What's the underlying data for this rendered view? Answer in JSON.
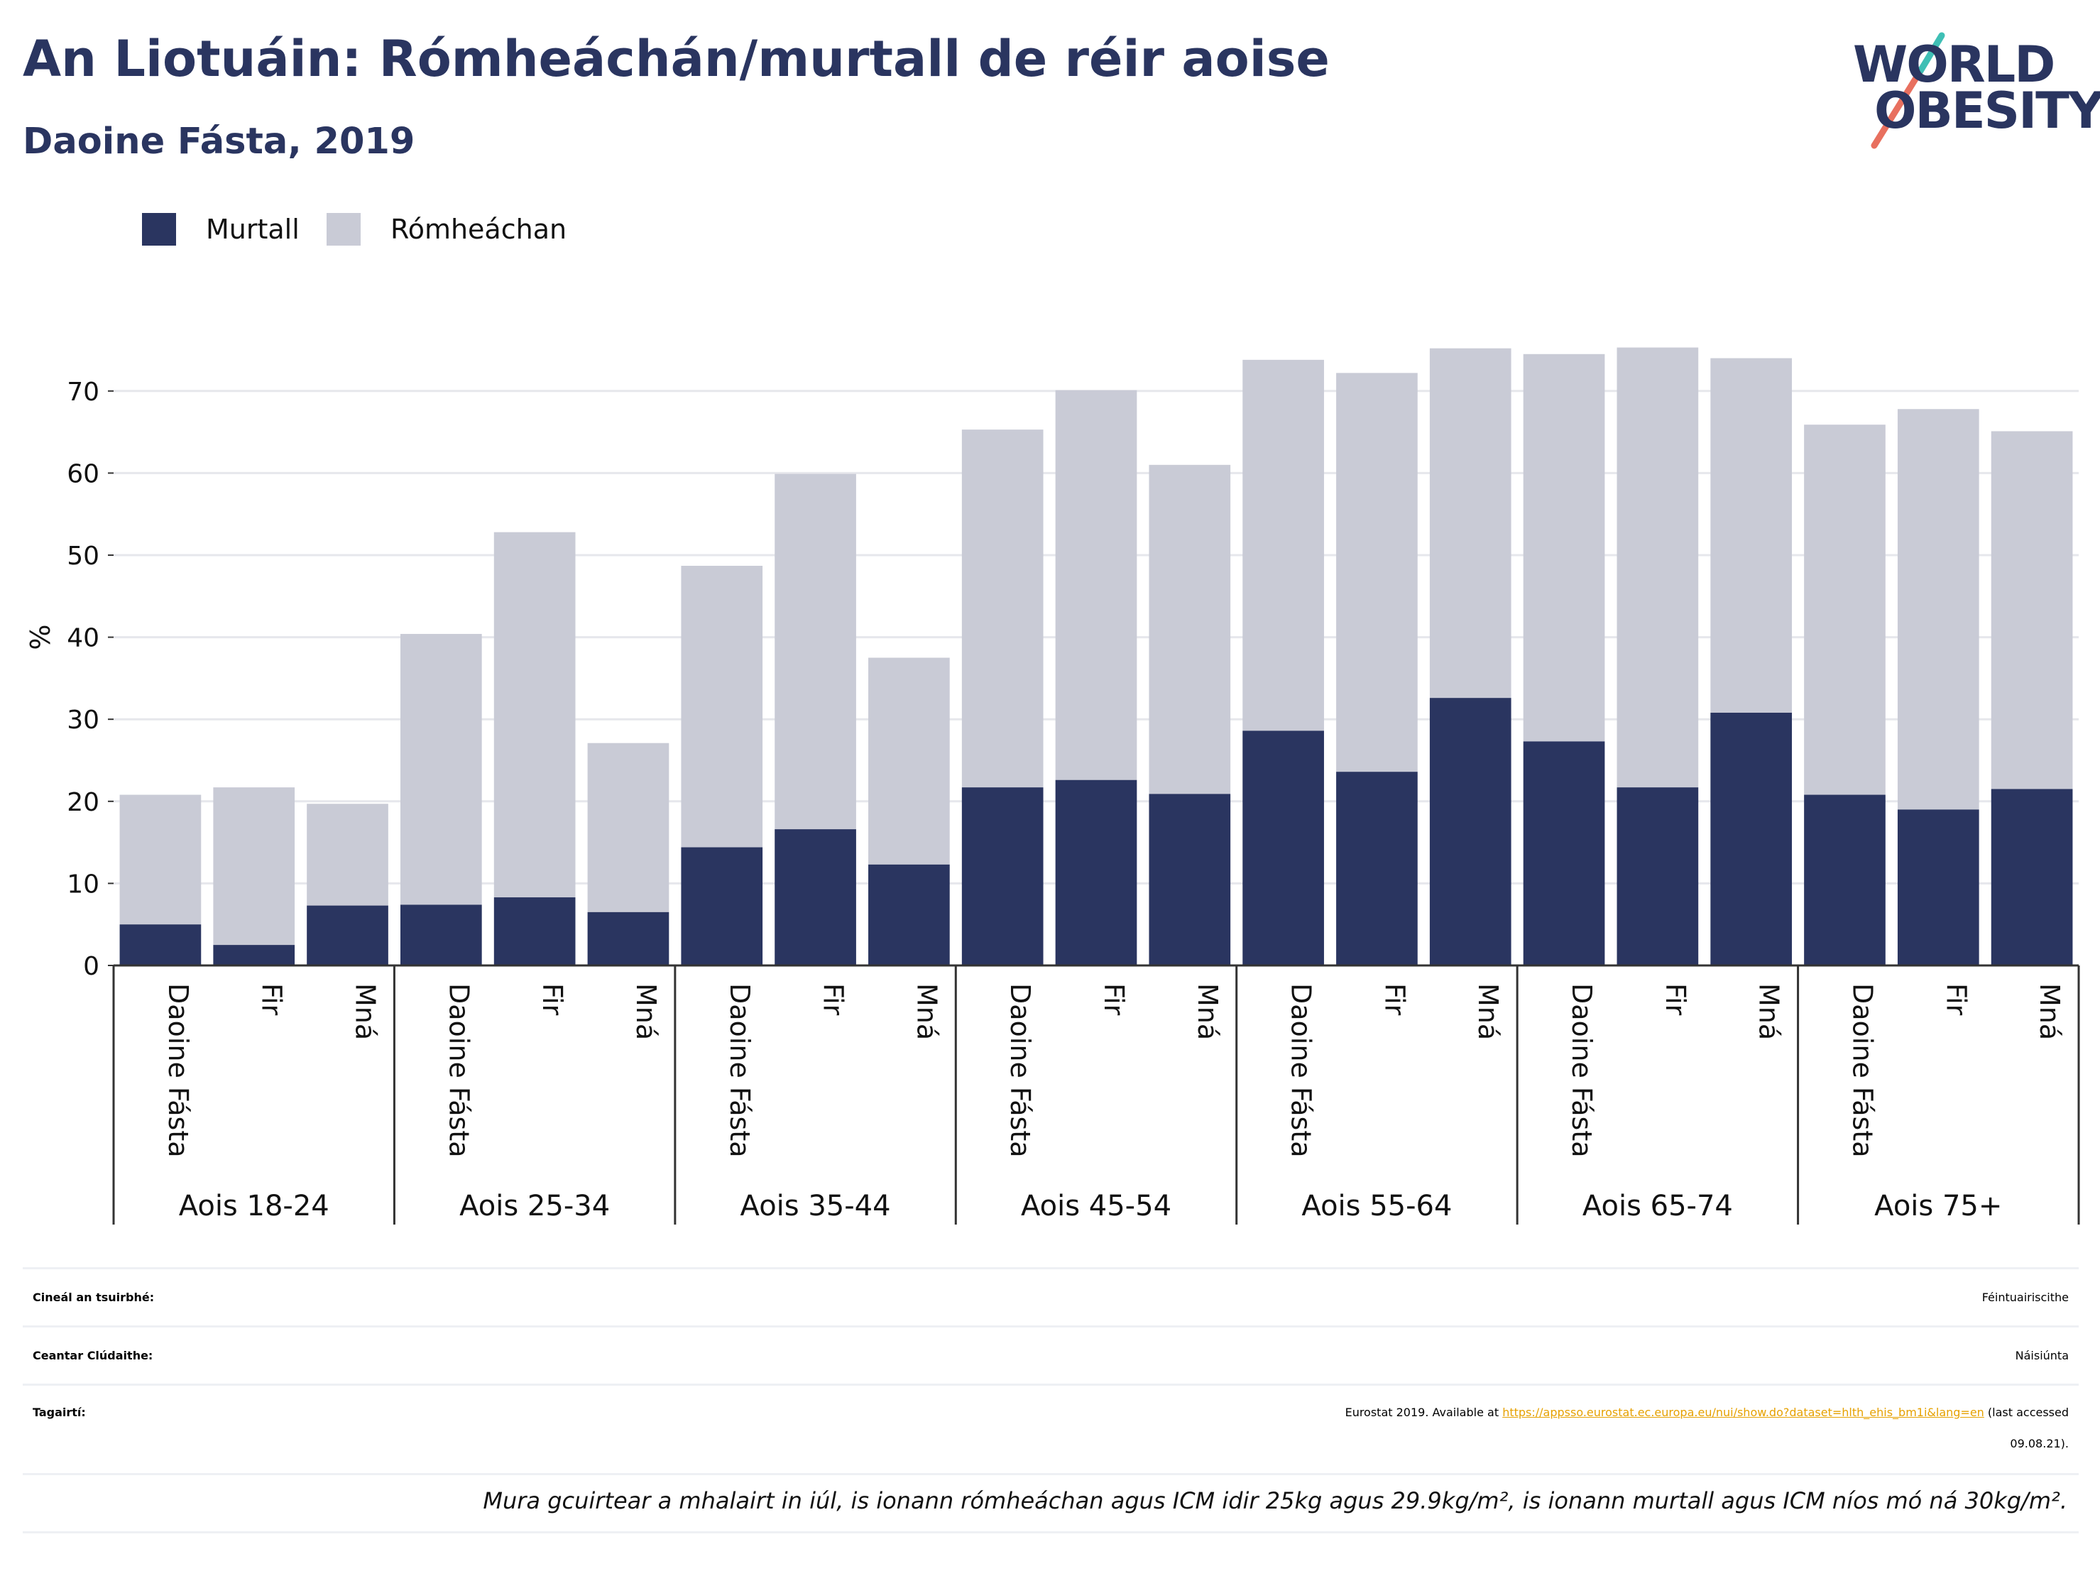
{
  "title": "An Liotuáin: Rómheáchán/murtall de réir aoise",
  "subtitle": "Daoine Fásta, 2019",
  "logo": {
    "line1": "WORLD",
    "line2": "OBESITY"
  },
  "colors": {
    "obesity": "#2a3560",
    "overweight": "#c9cbd6",
    "title": "#2a3560",
    "link": "#e6a100"
  },
  "legend": [
    {
      "label": "Murtall",
      "color": "#2a3560"
    },
    {
      "label": "Rómheáchan",
      "color": "#c9cbd6"
    }
  ],
  "chart_data": {
    "type": "bar",
    "stacked": true,
    "ylabel": "%",
    "ylim": [
      0,
      78
    ],
    "yticks": [
      0,
      10,
      20,
      30,
      40,
      50,
      60,
      70
    ],
    "grid": true,
    "groups": [
      "Aois 18-24",
      "Aois 25-34",
      "Aois 35-44",
      "Aois 45-54",
      "Aois 55-64",
      "Aois 65-74",
      "Aois 75+"
    ],
    "subcategories": [
      "Daoine Fásta",
      "Fir",
      "Mná"
    ],
    "series": [
      {
        "name": "Murtall",
        "values": [
          5.0,
          2.5,
          7.3,
          7.4,
          8.3,
          6.5,
          14.4,
          16.6,
          12.3,
          21.7,
          22.6,
          20.9,
          28.6,
          23.6,
          32.6,
          27.3,
          21.7,
          30.8,
          20.8,
          19.0,
          21.5
        ]
      },
      {
        "name": "Rómheáchan",
        "values": [
          15.8,
          19.2,
          12.4,
          33.0,
          44.5,
          20.6,
          34.3,
          43.3,
          25.2,
          43.6,
          47.5,
          40.1,
          45.2,
          48.6,
          42.6,
          47.2,
          53.6,
          43.2,
          45.1,
          48.8,
          43.6
        ]
      }
    ],
    "totals": [
      20.8,
      21.7,
      19.7,
      40.4,
      52.8,
      27.1,
      48.7,
      59.9,
      37.5,
      65.3,
      70.1,
      61.0,
      73.8,
      72.2,
      75.2,
      74.5,
      75.3,
      74.0,
      65.9,
      67.8,
      65.1
    ]
  },
  "info": {
    "survey_key": "Cineál an tsuirbhé:",
    "survey_value": "Féintuairiscithe",
    "area_key": "Ceantar Clúdaithe:",
    "area_value": "Náisiúnta",
    "ref_key": "Tagairtí:",
    "ref_prefix": "Eurostat 2019. Available at ",
    "ref_link": "https://appsso.eurostat.ec.europa.eu/nui/show.do?dataset=hlth_ehis_bm1i&lang=en",
    "ref_suffix": " (last accessed",
    "ref_suffix2": "09.08.21).",
    "note": "Mura gcuirtear a mhalairt in iúl, is ionann rómheáchan agus ICM idir 25kg agus 29.9kg/m², is ionann murtall agus ICM níos mó ná 30kg/m²."
  }
}
